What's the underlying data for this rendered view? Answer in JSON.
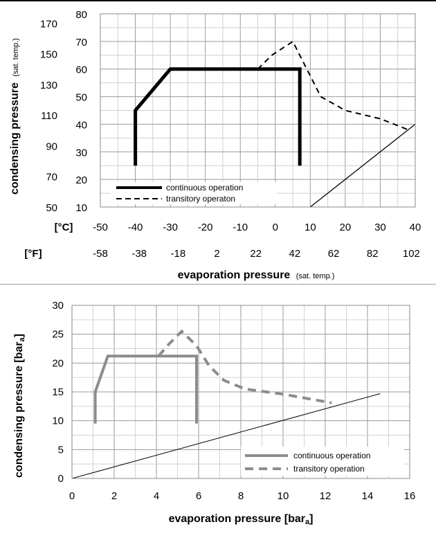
{
  "chart_data": [
    {
      "type": "line",
      "xlabel": "evaporation pressure",
      "xlabel_note": "(sat. temp.)",
      "ylabel": "condensing pressure",
      "ylabel_note": "(sat. temp.)",
      "x_unit_c": "[°C]",
      "x_unit_f": "[°F]",
      "xlim": [
        -50,
        40
      ],
      "ylim": [
        10,
        80
      ],
      "x_ticks_c": [
        "-50",
        "-40",
        "-30",
        "-20",
        "-10",
        "0",
        "10",
        "20",
        "30",
        "40"
      ],
      "x_ticks_f": [
        "-58",
        "-38",
        "-18",
        "2",
        "22",
        "42",
        "62",
        "82",
        "102"
      ],
      "y_ticks_c": [
        "10",
        "20",
        "30",
        "40",
        "50",
        "60",
        "70",
        "80"
      ],
      "y_ticks_f": [
        "50",
        "70",
        "90",
        "110",
        "130",
        "150",
        "170"
      ],
      "grid": true,
      "legend_position": "bottom-left",
      "series": [
        {
          "name": "continuous operation",
          "style": "solid",
          "color": "#000000",
          "points": [
            [
              -40,
              25
            ],
            [
              -40,
              45
            ],
            [
              -30,
              60
            ],
            [
              7,
              60
            ],
            [
              7,
              25
            ]
          ]
        },
        {
          "name": "transitory operaton",
          "style": "dashed",
          "color": "#000000",
          "points": [
            [
              -5,
              60
            ],
            [
              -1,
              65
            ],
            [
              5,
              70
            ],
            [
              9,
              60
            ],
            [
              13,
              50
            ],
            [
              20,
              45
            ],
            [
              30,
              42
            ],
            [
              38,
              38
            ]
          ]
        },
        {
          "name": "",
          "style": "thin",
          "color": "#000000",
          "points": [
            [
              10,
              10
            ],
            [
              40,
              40
            ]
          ]
        }
      ]
    },
    {
      "type": "line",
      "xlabel": "evaporation pressure [bar",
      "xlabel_sub": "a",
      "ylabel": "condensing pressure [bar",
      "ylabel_sub": "a",
      "xlim": [
        0,
        16
      ],
      "ylim": [
        0,
        30
      ],
      "x_ticks": [
        "0",
        "2",
        "4",
        "6",
        "8",
        "10",
        "12",
        "14",
        "16"
      ],
      "y_ticks": [
        "0",
        "5",
        "10",
        "15",
        "20",
        "25",
        "30"
      ],
      "grid": true,
      "legend_position": "bottom-right",
      "series": [
        {
          "name": "continuous operation",
          "style": "solid",
          "color": "#8c8c8c",
          "points": [
            [
              1.1,
              9.5
            ],
            [
              1.1,
              15
            ],
            [
              1.7,
              21.2
            ],
            [
              5.9,
              21.2
            ],
            [
              5.9,
              9.5
            ]
          ]
        },
        {
          "name": "transitory operation",
          "style": "dashed",
          "color": "#8c8c8c",
          "points": [
            [
              4.1,
              21.2
            ],
            [
              4.6,
              23.3
            ],
            [
              5.2,
              25.5
            ],
            [
              5.9,
              23
            ],
            [
              6.5,
              19.5
            ],
            [
              7.2,
              17
            ],
            [
              8.2,
              15.5
            ],
            [
              10,
              14.6
            ],
            [
              12.3,
              13.1
            ]
          ]
        },
        {
          "name": "",
          "style": "thin",
          "color": "#000000",
          "points": [
            [
              0,
              0
            ],
            [
              14.6,
              14.7
            ]
          ]
        }
      ]
    }
  ]
}
